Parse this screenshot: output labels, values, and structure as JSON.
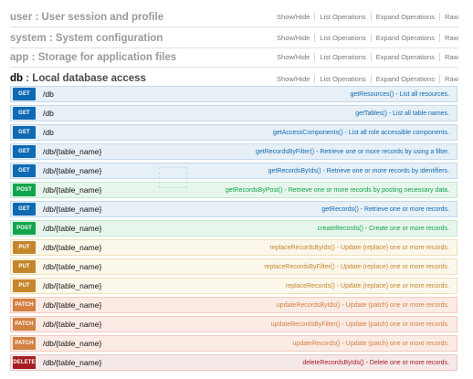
{
  "resources": [
    {
      "name": "user",
      "separator": " : ",
      "description": "User session and profile",
      "active": false,
      "links": [
        "Show/Hide",
        "List Operations",
        "Expand Operations",
        "Raw"
      ]
    },
    {
      "name": "system",
      "separator": " : ",
      "description": "System configuration",
      "active": false,
      "links": [
        "Show/Hide",
        "List Operations",
        "Expand Operations",
        "Raw"
      ]
    },
    {
      "name": "app",
      "separator": " : ",
      "description": "Storage for application files",
      "active": false,
      "links": [
        "Show/Hide",
        "List Operations",
        "Expand Operations",
        "Raw"
      ]
    },
    {
      "name": "db",
      "separator": " : ",
      "description": "Local database access",
      "active": true,
      "links": [
        "Show/Hide",
        "List Operations",
        "Expand Operations",
        "Raw"
      ]
    }
  ],
  "operations": [
    {
      "method": "GET",
      "path": "/db",
      "summary": "getResources() - List all resources."
    },
    {
      "method": "GET",
      "path": "/db",
      "summary": "getTables() - List all table names."
    },
    {
      "method": "GET",
      "path": "/db",
      "summary": "getAccessComponents() - List all role accessible components."
    },
    {
      "method": "GET",
      "path": "/db/{table_name}",
      "summary": "getRecordsByFilter() - Retrieve one or more records by using a filter."
    },
    {
      "method": "GET",
      "path": "/db/{table_name}",
      "summary": "getRecordsByIds() - Retrieve one or more records by identifiers."
    },
    {
      "method": "POST",
      "path": "/db/{table_name}",
      "summary": "getRecordsByPost() - Retrieve one or more records by posting necessary data."
    },
    {
      "method": "GET",
      "path": "/db/{table_name}",
      "summary": "getRecords() - Retrieve one or more records."
    },
    {
      "method": "POST",
      "path": "/db/{table_name}",
      "summary": "createRecords() - Create one or more records."
    },
    {
      "method": "PUT",
      "path": "/db/{table_name}",
      "summary": "replaceRecordsByIds() - Update (replace) one or more records."
    },
    {
      "method": "PUT",
      "path": "/db/{table_name}",
      "summary": "replaceRecordsByFilter() - Update (replace) one or more records."
    },
    {
      "method": "PUT",
      "path": "/db/{table_name}",
      "summary": "replaceRecords() - Update (replace) one or more records."
    },
    {
      "method": "PATCH",
      "path": "/db/{table_name}",
      "summary": "updateRecordsByIds() - Update (patch) one or more records."
    },
    {
      "method": "PATCH",
      "path": "/db/{table_name}",
      "summary": "updateRecordsByFilter() - Update (patch) one or more records."
    },
    {
      "method": "PATCH",
      "path": "/db/{table_name}",
      "summary": "updateRecords() - Update (patch) one or more records."
    },
    {
      "method": "DELETE",
      "path": "/db/{table_name}",
      "summary": "deleteRecordsByIds() - Delete one or more records."
    }
  ],
  "colors": {
    "get": "#0f6ab4",
    "post": "#10a54a",
    "put": "#c5862b",
    "patch": "#d38042",
    "delete": "#a41e22"
  }
}
